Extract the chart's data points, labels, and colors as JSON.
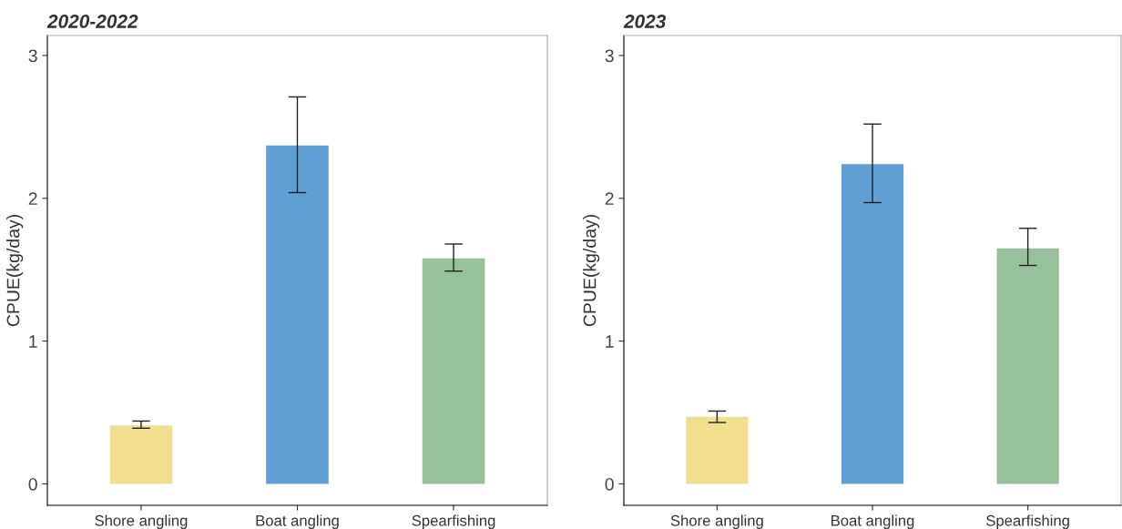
{
  "chart_data": [
    {
      "type": "bar",
      "title": "2020-2022",
      "ylabel": "CPUE(kg/day)",
      "categories": [
        "Shore angling",
        "Boat angling",
        "Spearfishing"
      ],
      "values": [
        0.41,
        2.37,
        1.58
      ],
      "errors": [
        [
          0.39,
          0.44
        ],
        [
          2.04,
          2.71
        ],
        [
          1.49,
          1.68
        ]
      ],
      "colors": [
        "#efdf8f",
        "#609fd3",
        "#98c09a"
      ],
      "ylim": [
        -0.15,
        3.14
      ],
      "yticks": [
        0,
        1,
        2,
        3
      ],
      "grid": false,
      "legend": false
    },
    {
      "type": "bar",
      "title": "2023",
      "ylabel": "CPUE(kg/day)",
      "categories": [
        "Shore angling",
        "Boat angling",
        "Spearfishing"
      ],
      "values": [
        0.47,
        2.24,
        1.65
      ],
      "errors": [
        [
          0.43,
          0.51
        ],
        [
          1.97,
          2.52
        ],
        [
          1.53,
          1.79
        ]
      ],
      "colors": [
        "#efdf8f",
        "#609fd3",
        "#98c09a"
      ],
      "ylim": [
        -0.15,
        3.14
      ],
      "yticks": [
        0,
        1,
        2,
        3
      ],
      "grid": false,
      "legend": false
    }
  ]
}
